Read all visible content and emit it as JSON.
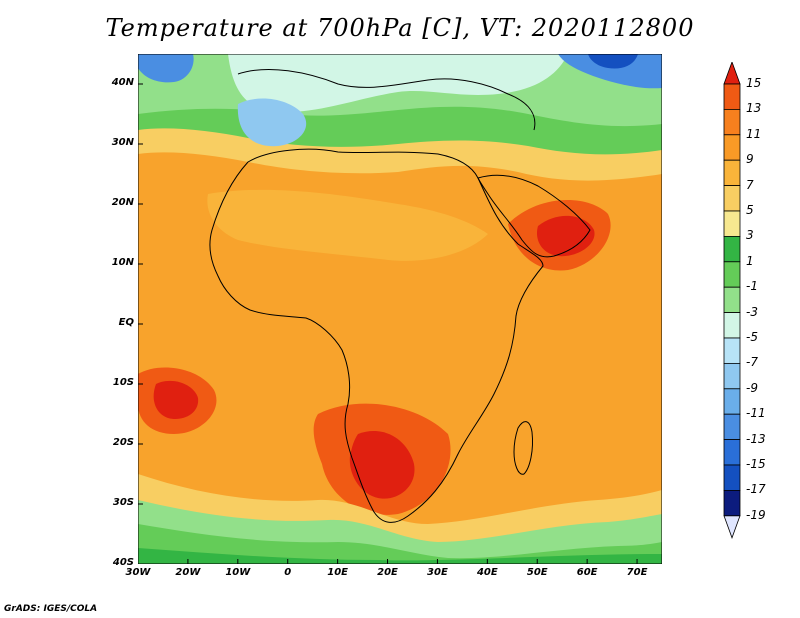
{
  "title": "Temperature at 700hPa [C], VT: 2020112800",
  "footer": "GrADS: IGES/COLA",
  "map": {
    "lon_range": [
      -30,
      75
    ],
    "lat_range": [
      -40,
      45
    ],
    "lat_ticks": [
      {
        "value": 40,
        "label": "40N"
      },
      {
        "value": 30,
        "label": "30N"
      },
      {
        "value": 20,
        "label": "20N"
      },
      {
        "value": 10,
        "label": "10N"
      },
      {
        "value": 0,
        "label": "EQ"
      },
      {
        "value": -10,
        "label": "10S"
      },
      {
        "value": -20,
        "label": "20S"
      },
      {
        "value": -30,
        "label": "30S"
      },
      {
        "value": -40,
        "label": "40S"
      }
    ],
    "lon_ticks": [
      {
        "value": -30,
        "label": "30W"
      },
      {
        "value": -20,
        "label": "20W"
      },
      {
        "value": -10,
        "label": "10W"
      },
      {
        "value": 0,
        "label": "0"
      },
      {
        "value": 10,
        "label": "10E"
      },
      {
        "value": 20,
        "label": "20E"
      },
      {
        "value": 30,
        "label": "30E"
      },
      {
        "value": 40,
        "label": "40E"
      },
      {
        "value": 50,
        "label": "50E"
      },
      {
        "value": 60,
        "label": "60E"
      },
      {
        "value": 70,
        "label": "70E"
      }
    ]
  },
  "colorbar": {
    "labels": [
      "15",
      "13",
      "11",
      "9",
      "7",
      "5",
      "3",
      "1",
      "-1",
      "-3",
      "-5",
      "-7",
      "-9",
      "-11",
      "-13",
      "-15",
      "-17",
      "-19"
    ],
    "colors": [
      "#e02010",
      "#f05a14",
      "#f7801e",
      "#f99a26",
      "#f9b43a",
      "#f8ce62",
      "#f7e890",
      "#33b544",
      "#64cc58",
      "#92e08a",
      "#d2f6e6",
      "#b7e3f7",
      "#8fc8f0",
      "#6aaeea",
      "#4a8ee2",
      "#2a6fd8",
      "#1450c0",
      "#0c1c7e",
      "#e0e6ff"
    ]
  }
}
